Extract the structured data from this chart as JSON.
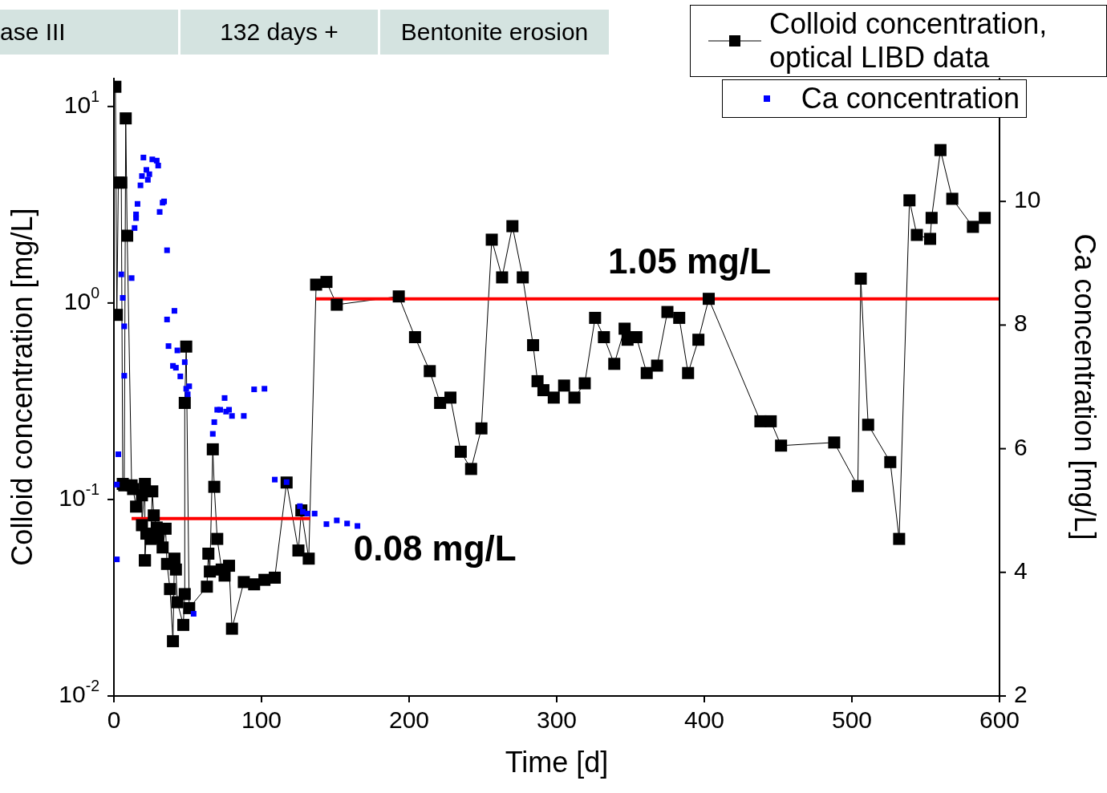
{
  "chart_data": {
    "type": "line",
    "xlabel": "Time [d]",
    "ylabel": "Colloid concentration [mg/L]",
    "y2label": "Ca concentration [mg/L]",
    "xlim": [
      0,
      600
    ],
    "xticks": [
      0,
      100,
      200,
      300,
      400,
      500,
      600
    ],
    "ylim": [
      0.01,
      14
    ],
    "yticks": [
      {
        "value": 0.01,
        "label": "10$^{-2}$"
      },
      {
        "value": 0.1,
        "label": "10$^{-1}$"
      },
      {
        "value": 1,
        "label": "10$^{0}$"
      },
      {
        "value": 10,
        "label": "10$^{1}$"
      }
    ],
    "log": "y",
    "y2lim": [
      2,
      12
    ],
    "y2ticks": [
      2,
      4,
      6,
      8,
      10
    ],
    "grid": false,
    "legend": "top right",
    "annotations": [
      "ase III",
      "132 days +",
      "Bentonite erosion"
    ],
    "series": [
      {
        "name": "Colloid concentration, optical LIBD data",
        "marker": "square",
        "color": "#000000",
        "x": [
          1,
          2,
          3,
          5,
          6,
          7,
          8,
          9,
          12,
          13,
          15,
          19,
          19,
          21,
          21,
          21,
          22,
          25,
          26,
          27,
          29,
          30,
          33,
          35,
          36,
          38,
          40,
          41,
          42,
          43,
          47,
          48,
          48,
          49,
          51,
          63,
          64,
          65,
          67,
          68,
          70,
          73,
          75,
          78,
          80,
          88,
          95,
          102,
          109,
          117,
          125,
          127,
          132,
          137,
          144,
          151,
          193,
          204,
          214,
          221,
          228,
          235,
          242,
          249,
          256,
          263,
          270,
          277,
          284,
          287,
          291,
          298,
          305,
          312,
          319,
          326,
          332,
          339,
          346,
          348,
          354,
          361,
          368,
          375,
          383,
          389,
          396,
          403,
          438,
          445,
          452,
          488,
          504,
          506,
          511,
          526,
          532,
          539,
          544,
          553,
          554,
          560,
          568,
          582,
          590
        ],
        "values": [
          12.6,
          0.87,
          4.1,
          4.1,
          0.12,
          0.118,
          8.7,
          2.2,
          0.118,
          0.113,
          0.092,
          0.105,
          0.074,
          0.12,
          0.049,
          0.049,
          0.067,
          0.063,
          0.11,
          0.083,
          0.072,
          0.064,
          0.057,
          0.071,
          0.047,
          0.035,
          0.019,
          0.05,
          0.044,
          0.03,
          0.023,
          0.033,
          0.31,
          0.6,
          0.028,
          0.036,
          0.053,
          0.043,
          0.18,
          0.116,
          0.063,
          0.044,
          0.041,
          0.046,
          0.022,
          0.038,
          0.037,
          0.039,
          0.04,
          0.122,
          0.055,
          0.088,
          0.05,
          1.24,
          1.28,
          0.98,
          1.08,
          0.67,
          0.45,
          0.31,
          0.33,
          0.175,
          0.143,
          0.23,
          2.1,
          1.35,
          2.46,
          1.35,
          0.61,
          0.4,
          0.36,
          0.33,
          0.38,
          0.33,
          0.39,
          0.84,
          0.67,
          0.49,
          0.74,
          0.65,
          0.67,
          0.44,
          0.48,
          0.9,
          0.84,
          0.44,
          0.65,
          1.05,
          0.25,
          0.25,
          0.188,
          0.195,
          0.117,
          1.33,
          0.24,
          0.155,
          0.063,
          3.33,
          2.22,
          2.12,
          2.71,
          6.0,
          3.39,
          2.44,
          2.71
        ]
      },
      {
        "name": "Ca concentration",
        "type": "scatter",
        "marker": "square",
        "axis": "y2",
        "color": "#0000ff",
        "x": [
          2,
          2,
          3,
          5,
          6,
          7,
          7,
          12,
          14,
          15,
          15,
          16,
          18,
          19,
          20,
          22,
          23,
          24,
          26,
          29,
          30,
          31,
          33,
          34,
          36,
          36,
          37,
          40,
          41,
          42,
          43,
          45,
          48,
          49,
          50,
          51,
          54,
          67,
          68,
          70,
          72,
          75,
          76,
          78,
          80,
          88,
          95,
          102,
          109,
          117,
          126,
          128,
          131,
          136,
          144,
          151,
          158,
          165
        ],
        "values": [
          4.21,
          5.42,
          5.91,
          8.82,
          8.44,
          7.98,
          7.18,
          8.76,
          9.57,
          9.73,
          9.79,
          9.96,
          10.26,
          10.41,
          10.71,
          10.51,
          10.35,
          10.44,
          10.68,
          10.66,
          10.58,
          9.83,
          9.98,
          10.0,
          9.21,
          8.09,
          7.66,
          7.34,
          8.23,
          7.31,
          7.59,
          7.17,
          7.4,
          6.97,
          6.88,
          7.01,
          3.33,
          6.24,
          6.43,
          6.63,
          6.63,
          6.82,
          6.6,
          6.63,
          6.53,
          6.53,
          6.96,
          6.97,
          5.5,
          5.46,
          5.07,
          4.98,
          4.95,
          4.95,
          4.78,
          4.84,
          4.79,
          4.75
        ]
      },
      {
        "name": "0.08 mg/L",
        "type": "line",
        "marker": "none",
        "color": "#ff0000",
        "x": [
          12,
          133
        ],
        "values": [
          0.08,
          0.08
        ]
      },
      {
        "name": "1.05 mg/L",
        "type": "line",
        "marker": "none",
        "color": "#ff0000",
        "x": [
          137,
          600
        ],
        "values": [
          1.05,
          1.05
        ]
      }
    ]
  }
}
